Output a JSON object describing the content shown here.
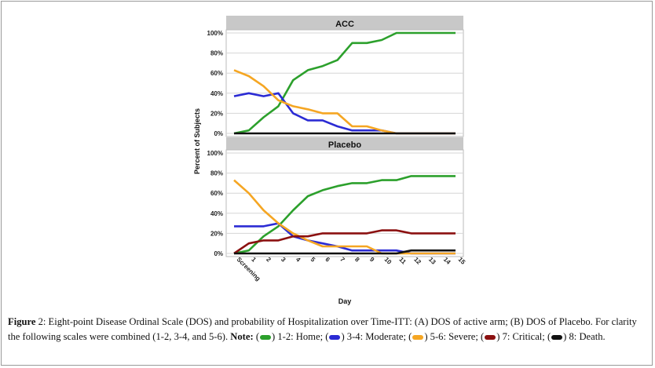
{
  "chart_data": [
    {
      "type": "line",
      "title": "ACC",
      "ylabel": "Percent of Subjects",
      "xlabel": "Day",
      "x": [
        "Screening",
        "1",
        "2",
        "3",
        "4",
        "5",
        "6",
        "7",
        "8",
        "9",
        "10",
        "11",
        "12",
        "13",
        "14",
        "15"
      ],
      "ylim": [
        0,
        100
      ],
      "yticks": [
        "0%",
        "20%",
        "40%",
        "60%",
        "80%",
        "100%"
      ],
      "grid": true,
      "series": [
        {
          "name": "1-2: Home",
          "color": "#2ca02c",
          "values": [
            0,
            3,
            16,
            27,
            53,
            63,
            67,
            73,
            90,
            90,
            93,
            100,
            100,
            100,
            100,
            100
          ]
        },
        {
          "name": "3-4: Moderate",
          "color": "#2b2bd4",
          "values": [
            37,
            40,
            37,
            40,
            20,
            13,
            13,
            7,
            3,
            3,
            3,
            0,
            0,
            0,
            0,
            0
          ]
        },
        {
          "name": "5-6: Severe",
          "color": "#f5a623",
          "values": [
            63,
            57,
            47,
            33,
            27,
            24,
            20,
            20,
            7,
            7,
            3,
            0,
            0,
            0,
            0,
            0
          ]
        },
        {
          "name": "8: Death",
          "color": "#111111",
          "values": [
            0,
            0,
            0,
            0,
            0,
            0,
            0,
            0,
            0,
            0,
            0,
            0,
            0,
            0,
            0,
            0
          ]
        }
      ]
    },
    {
      "type": "line",
      "title": "Placebo",
      "ylabel": "Percent of Subjects",
      "xlabel": "Day",
      "x": [
        "Screening",
        "1",
        "2",
        "3",
        "4",
        "5",
        "6",
        "7",
        "8",
        "9",
        "10",
        "11",
        "12",
        "13",
        "14",
        "15"
      ],
      "ylim": [
        0,
        100
      ],
      "yticks": [
        "0%",
        "20%",
        "40%",
        "60%",
        "80%",
        "100%"
      ],
      "grid": true,
      "series": [
        {
          "name": "1-2: Home",
          "color": "#2ca02c",
          "values": [
            0,
            3,
            17,
            27,
            43,
            57,
            63,
            67,
            70,
            70,
            73,
            73,
            77,
            77,
            77,
            77
          ]
        },
        {
          "name": "3-4: Moderate",
          "color": "#2b2bd4",
          "values": [
            27,
            27,
            27,
            30,
            17,
            13,
            10,
            7,
            3,
            3,
            3,
            3,
            0,
            0,
            0,
            0
          ]
        },
        {
          "name": "5-6: Severe",
          "color": "#f5a623",
          "values": [
            73,
            60,
            43,
            30,
            20,
            13,
            7,
            7,
            7,
            7,
            0,
            0,
            0,
            0,
            0,
            0
          ]
        },
        {
          "name": "7: Critical",
          "color": "#8b1010",
          "values": [
            0,
            10,
            13,
            13,
            17,
            17,
            20,
            20,
            20,
            20,
            23,
            23,
            20,
            20,
            20,
            20
          ]
        },
        {
          "name": "8: Death",
          "color": "#111111",
          "values": [
            0,
            0,
            0,
            0,
            0,
            0,
            0,
            0,
            0,
            0,
            0,
            0,
            3,
            3,
            3,
            3
          ]
        }
      ]
    }
  ],
  "caption": {
    "figure_label": "Figure",
    "part1": " 2: Eight-point Disease Ordinal Scale (DOS) and probability of Hospitalization over Time-ITT: (A) DOS of active arm; (B) DOS of Placebo. For clarity the following scales were combined (1-2, 3-4, and 5-6). ",
    "note_label": "Note:",
    "legend": [
      {
        "label": "1-2: Home;",
        "color": "#2ca02c"
      },
      {
        "label": "3-4: Moderate;",
        "color": "#2b2bd4"
      },
      {
        "label": "5-6: Severe;",
        "color": "#f5a623"
      },
      {
        "label": "7: Critical;",
        "color": "#8b1010"
      },
      {
        "label": "8: Death.",
        "color": "#111111"
      }
    ]
  }
}
